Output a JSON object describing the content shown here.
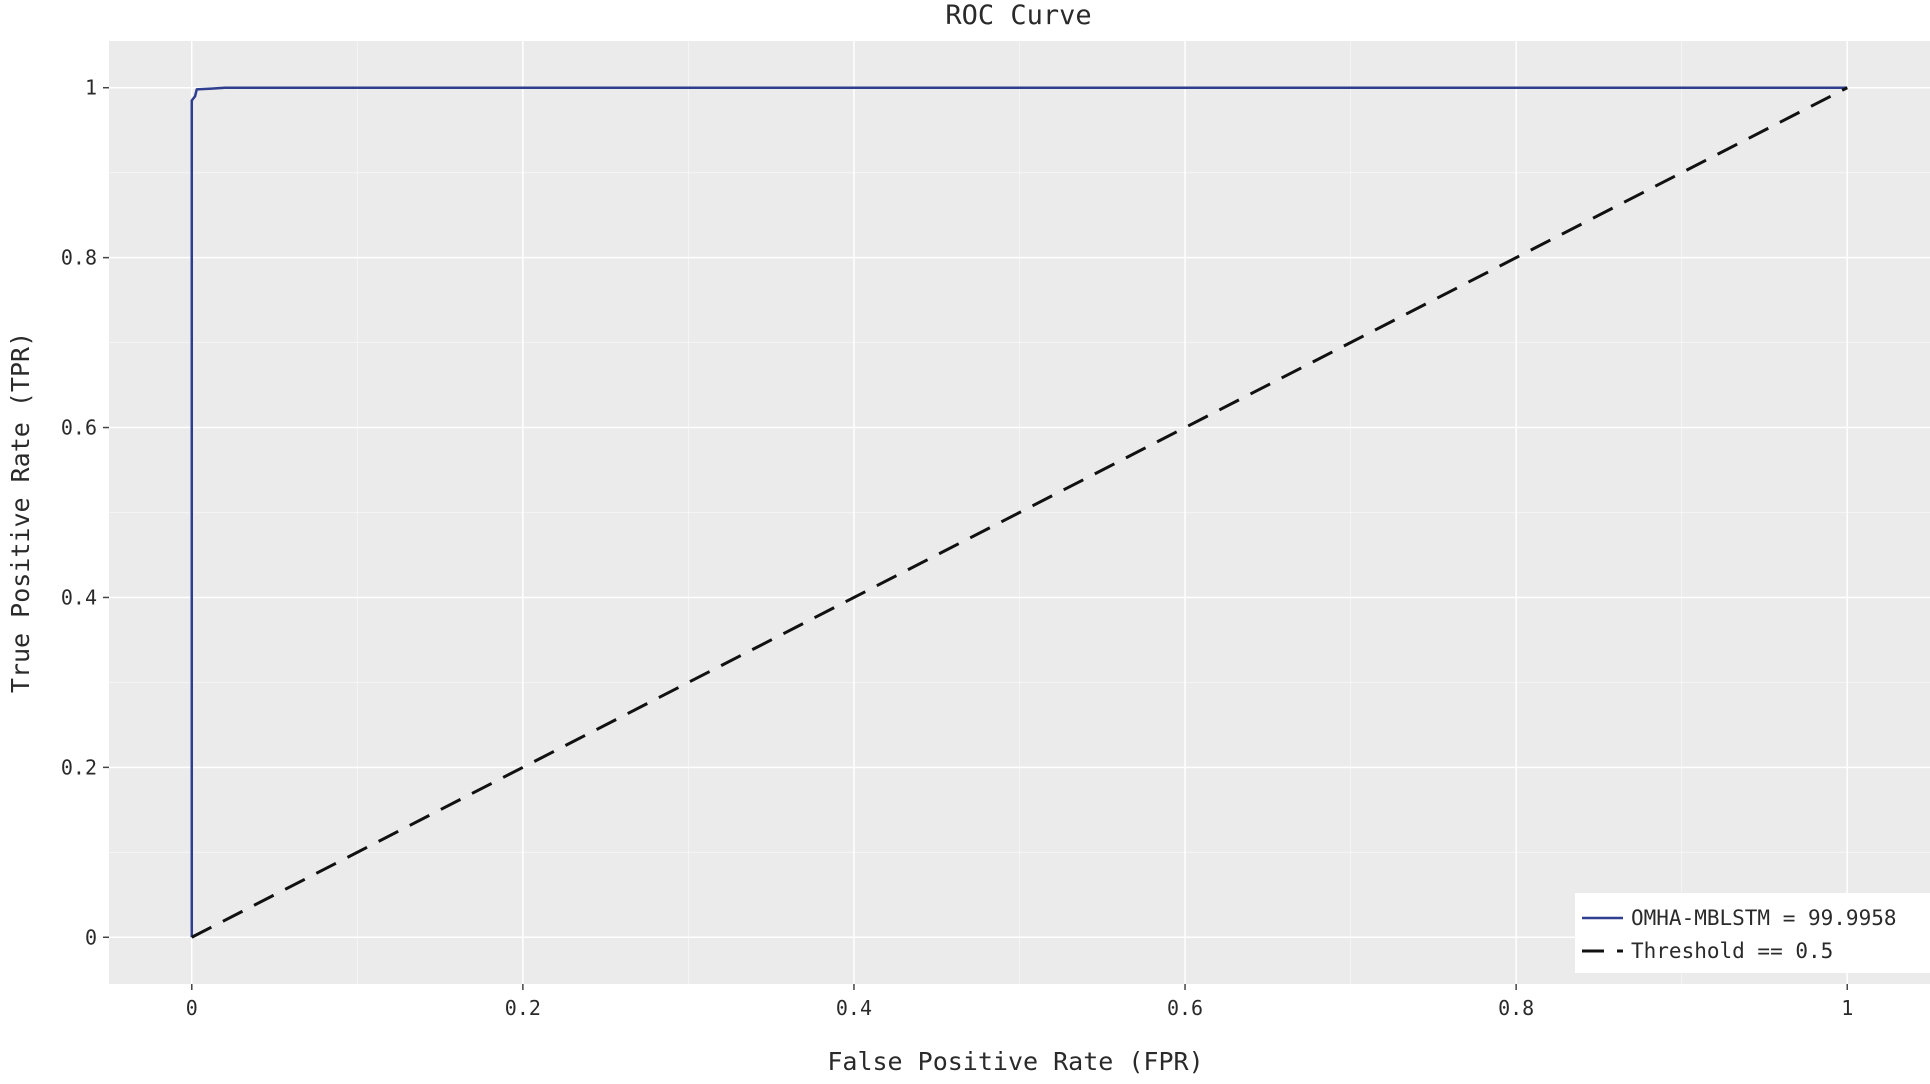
{
  "chart_data": {
    "type": "line",
    "title": "ROC Curve",
    "xlabel": "False Positive Rate (FPR)",
    "ylabel": "True Positive Rate (TPR)",
    "xlim": [
      -0.05,
      1.05
    ],
    "ylim": [
      -0.055,
      1.055
    ],
    "x_ticks": [
      0,
      0.2,
      0.4,
      0.6,
      0.8,
      1
    ],
    "x_tick_labels": [
      "0",
      "0.2",
      "0.4",
      "0.6",
      "0.8",
      "1"
    ],
    "y_ticks": [
      0,
      0.2,
      0.4,
      0.6,
      0.8,
      1
    ],
    "y_tick_labels": [
      "0",
      "0.2",
      "0.4",
      "0.6",
      "0.8",
      "1"
    ],
    "grid": true,
    "legend_position": "bottom-right",
    "series": [
      {
        "name": "OMHA-MBLSTM = 99.9958",
        "color": "#2f3e8f",
        "style": "solid",
        "x": [
          0,
          0,
          0.002,
          0.003,
          0.012,
          0.02,
          1
        ],
        "y": [
          0,
          0.985,
          0.99,
          0.998,
          0.999,
          1,
          1
        ]
      },
      {
        "name": "Threshold == 0.5",
        "color": "#111111",
        "style": "dashed",
        "x": [
          0,
          1
        ],
        "y": [
          0,
          1
        ]
      }
    ],
    "colors": {
      "plot_background": "#ebebeb",
      "grid": "#ffffff"
    }
  }
}
